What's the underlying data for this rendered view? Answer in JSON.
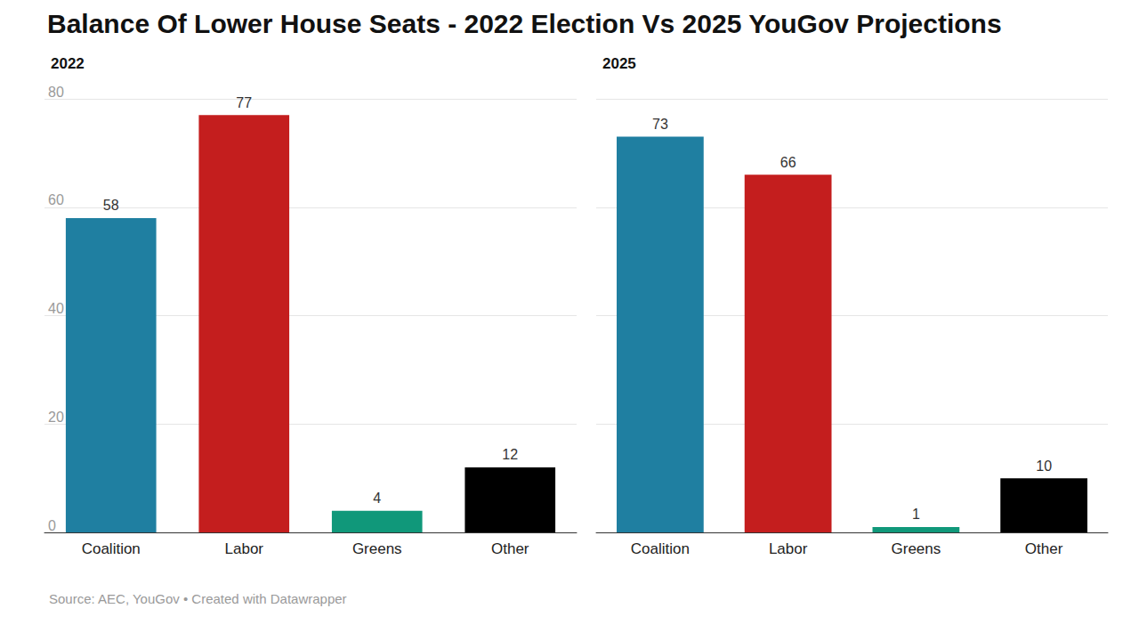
{
  "title": "Balance Of Lower House Seats - 2022 Election Vs 2025 YouGov Projections",
  "note": "Source: AEC, YouGov • Created with Datawrapper",
  "chart_data": [
    {
      "type": "bar",
      "title": "2022",
      "categories": [
        "Coalition",
        "Labor",
        "Greens",
        "Other"
      ],
      "values": [
        58,
        77,
        4,
        12
      ],
      "colors": [
        "#1f7fa1",
        "#c41e1e",
        "#10987a",
        "#000000"
      ],
      "ylim": [
        0,
        80
      ],
      "yticks": [
        0,
        20,
        40,
        60,
        80
      ],
      "grid": true,
      "data_labels": true
    },
    {
      "type": "bar",
      "title": "2025",
      "categories": [
        "Coalition",
        "Labor",
        "Greens",
        "Other"
      ],
      "values": [
        73,
        66,
        1,
        10
      ],
      "colors": [
        "#1f7fa1",
        "#c41e1e",
        "#10987a",
        "#000000"
      ],
      "ylim": [
        0,
        80
      ],
      "yticks": [
        0,
        20,
        40,
        60,
        80
      ],
      "grid": true,
      "data_labels": true,
      "tick_labels": "x"
    }
  ]
}
